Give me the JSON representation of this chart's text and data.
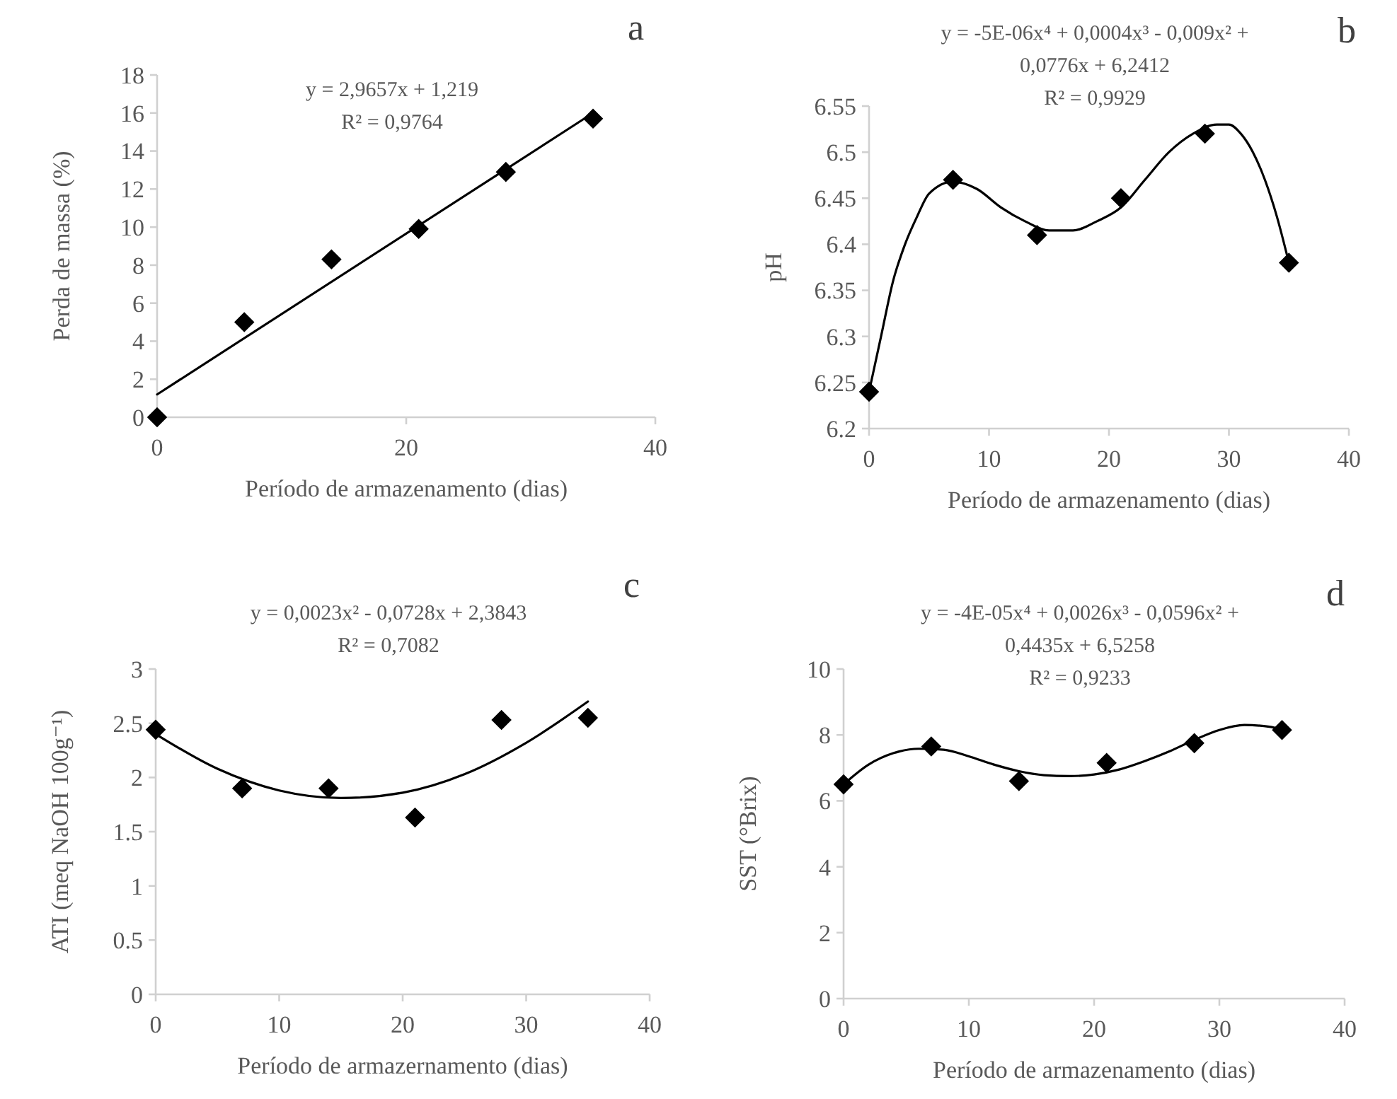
{
  "chart_data": [
    {
      "type": "scatter",
      "title": "a",
      "xlabel": "Período de armazenamento (dias)",
      "ylabel": "Perda de massa (%)",
      "annotations": [
        "y = 2,9657x + 1,219",
        "R² = 0,9764"
      ],
      "xlim": [
        0,
        40
      ],
      "xticks": [
        0,
        20,
        40
      ],
      "ylim": [
        0,
        18
      ],
      "yticks": [
        0,
        2,
        4,
        6,
        8,
        10,
        12,
        14,
        16,
        18
      ],
      "grid": false,
      "series": [
        {
          "marker": "diamond",
          "color": "#000000",
          "x": [
            0,
            7,
            14,
            21,
            28,
            35
          ],
          "values": [
            0,
            5,
            8.3,
            9.9,
            12.9,
            15.7
          ]
        },
        {
          "type": "line",
          "marker": "none",
          "line_style": "solid",
          "color": "#000000",
          "x": [
            0,
            35
          ],
          "values": [
            1.2,
            16.0
          ]
        }
      ]
    },
    {
      "type": "scatter",
      "title": "b",
      "xlabel": "Período de armazenamento (dias)",
      "ylabel": "pH",
      "annotations": [
        "y = -5E-06x⁴ + 0,0004x³ - 0,009x² +",
        "0,0776x + 6,2412",
        "R² = 0,9929"
      ],
      "xlim": [
        0,
        40
      ],
      "xticks": [
        0,
        10,
        20,
        30,
        40
      ],
      "ylim": [
        6.2,
        6.55
      ],
      "yticks": [
        6.2,
        6.25,
        6.3,
        6.35,
        6.4,
        6.45,
        6.5,
        6.55
      ],
      "grid": false,
      "series": [
        {
          "marker": "diamond",
          "color": "#000000",
          "x": [
            0,
            7,
            14,
            21,
            28,
            35
          ],
          "values": [
            6.24,
            6.47,
            6.41,
            6.45,
            6.52,
            6.38
          ]
        },
        {
          "type": "line",
          "marker": "none",
          "line_style": "solid",
          "color": "#000000",
          "x": [
            0,
            1,
            2,
            3,
            4,
            5,
            7,
            9,
            11,
            13,
            15,
            17,
            19,
            21,
            23,
            25,
            27,
            29,
            30,
            31,
            32,
            33,
            34,
            35
          ],
          "values": [
            6.24,
            6.3,
            6.36,
            6.4,
            6.43,
            6.455,
            6.468,
            6.46,
            6.44,
            6.425,
            6.415,
            6.415,
            6.425,
            6.44,
            6.47,
            6.5,
            6.52,
            6.53,
            6.53,
            6.52,
            6.5,
            6.47,
            6.43,
            6.38
          ]
        }
      ]
    },
    {
      "type": "scatter",
      "title": "c",
      "xlabel": "Período de armazernamento (dias)",
      "ylabel": "ATI  (meq NaOH 100g⁻¹)",
      "annotations": [
        "y = 0,0023x² - 0,0728x + 2,3843",
        "R² = 0,7082"
      ],
      "xlim": [
        0,
        40
      ],
      "xticks": [
        0,
        10,
        20,
        30,
        40
      ],
      "ylim": [
        0,
        3
      ],
      "yticks": [
        0,
        0.5,
        1,
        1.5,
        2,
        2.5,
        3
      ],
      "grid": false,
      "series": [
        {
          "marker": "diamond",
          "color": "#000000",
          "x": [
            0,
            7,
            14,
            21,
            28,
            35
          ],
          "values": [
            2.44,
            1.9,
            1.9,
            1.63,
            2.53,
            2.55
          ]
        },
        {
          "type": "line",
          "marker": "none",
          "line_style": "solid",
          "color": "#000000",
          "x": [
            0,
            5,
            10,
            15,
            20,
            25,
            30,
            35
          ],
          "values": [
            2.4,
            2.08,
            1.88,
            1.81,
            1.86,
            2.03,
            2.32,
            2.7
          ]
        }
      ]
    },
    {
      "type": "scatter",
      "title": "d",
      "xlabel": "Período de armazenamento (dias)",
      "ylabel": "SST (°Brix)",
      "annotations": [
        "y = -4E-05x⁴ + 0,0026x³ - 0,0596x² +",
        "0,4435x + 6,5258",
        "R² = 0,9233"
      ],
      "xlim": [
        0,
        40
      ],
      "xticks": [
        0,
        10,
        20,
        30,
        40
      ],
      "ylim": [
        0,
        10
      ],
      "yticks": [
        0,
        2,
        4,
        6,
        8,
        10
      ],
      "grid": false,
      "series": [
        {
          "marker": "diamond",
          "color": "#000000",
          "x": [
            0,
            7,
            14,
            21,
            28,
            35
          ],
          "values": [
            6.5,
            7.65,
            6.6,
            7.15,
            7.75,
            8.15
          ]
        },
        {
          "type": "line",
          "marker": "none",
          "line_style": "solid",
          "color": "#000000",
          "x": [
            0,
            2,
            4,
            6,
            8,
            10,
            12,
            14,
            16,
            18,
            20,
            22,
            24,
            26,
            28,
            30,
            32,
            34,
            35
          ],
          "values": [
            6.5,
            7.1,
            7.45,
            7.58,
            7.55,
            7.35,
            7.1,
            6.9,
            6.78,
            6.75,
            6.8,
            6.95,
            7.2,
            7.5,
            7.85,
            8.15,
            8.3,
            8.25,
            8.15
          ]
        }
      ]
    }
  ]
}
